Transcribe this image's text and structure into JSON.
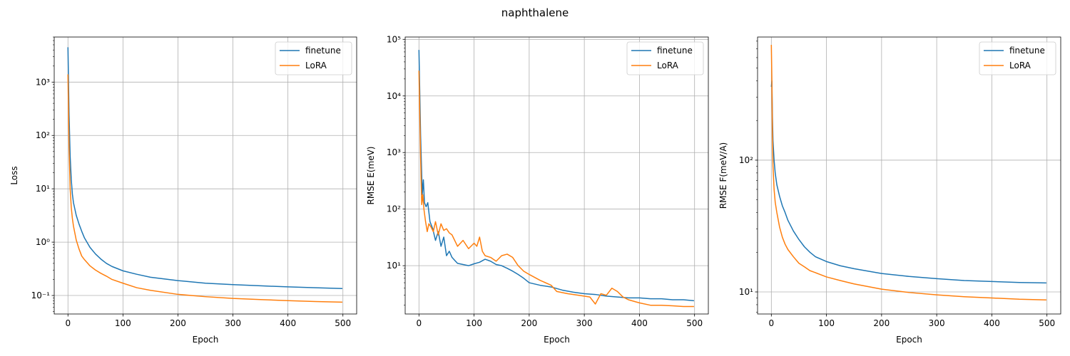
{
  "figure": {
    "suptitle": "naphthalene"
  },
  "colors": {
    "finetune": "#1f77b4",
    "LoRA": "#ff7f0e",
    "grid": "#b0b0b0"
  },
  "chart_data": [
    {
      "type": "line",
      "title": "",
      "xlabel": "Epoch",
      "ylabel": "Loss",
      "yscale": "log",
      "xlim": [
        -25,
        525
      ],
      "ylim": [
        0.045,
        7000
      ],
      "xticks": [
        0,
        100,
        200,
        300,
        400,
        500
      ],
      "xtick_labels": [
        "0",
        "100",
        "200",
        "300",
        "400",
        "500"
      ],
      "yticks": [
        0.1,
        1,
        10,
        100,
        1000
      ],
      "ytick_labels": [
        "10⁻¹",
        "10⁰",
        "10¹",
        "10²",
        "10³"
      ],
      "grid": true,
      "legend": "top-right",
      "series": [
        {
          "name": "finetune",
          "x": [
            0,
            2,
            4,
            6,
            8,
            10,
            15,
            20,
            25,
            30,
            40,
            50,
            60,
            70,
            80,
            100,
            125,
            150,
            200,
            250,
            300,
            350,
            400,
            450,
            499
          ],
          "y": [
            4500,
            250,
            40,
            15,
            8,
            5.5,
            3.2,
            2.2,
            1.6,
            1.2,
            0.8,
            0.6,
            0.48,
            0.4,
            0.35,
            0.29,
            0.25,
            0.22,
            0.19,
            0.17,
            0.16,
            0.152,
            0.145,
            0.14,
            0.135
          ]
        },
        {
          "name": "LoRA",
          "x": [
            0,
            2,
            4,
            6,
            8,
            10,
            15,
            20,
            25,
            30,
            40,
            50,
            60,
            70,
            80,
            100,
            125,
            150,
            200,
            250,
            300,
            350,
            400,
            450,
            499
          ],
          "y": [
            1400,
            60,
            10,
            4.5,
            2.8,
            2.0,
            1.1,
            0.75,
            0.55,
            0.47,
            0.36,
            0.3,
            0.26,
            0.23,
            0.2,
            0.17,
            0.14,
            0.125,
            0.105,
            0.095,
            0.088,
            0.084,
            0.08,
            0.077,
            0.075
          ]
        }
      ]
    },
    {
      "type": "line",
      "title": "",
      "xlabel": "Epoch",
      "ylabel": "RMSE E(meV)",
      "yscale": "log",
      "xlim": [
        -25,
        525
      ],
      "ylim": [
        1.4,
        110000
      ],
      "xticks": [
        0,
        100,
        200,
        300,
        400,
        500
      ],
      "xtick_labels": [
        "0",
        "100",
        "200",
        "300",
        "400",
        "500"
      ],
      "yticks": [
        10,
        100,
        1000,
        10000,
        100000
      ],
      "ytick_labels": [
        "10¹",
        "10²",
        "10³",
        "10⁴",
        "10⁵"
      ],
      "grid": true,
      "legend": "top-right",
      "series": [
        {
          "name": "finetune",
          "x": [
            0,
            3,
            6,
            8,
            10,
            13,
            16,
            20,
            25,
            30,
            35,
            40,
            45,
            50,
            55,
            60,
            70,
            80,
            90,
            100,
            110,
            120,
            130,
            140,
            150,
            160,
            170,
            180,
            190,
            200,
            220,
            240,
            260,
            280,
            300,
            320,
            340,
            360,
            380,
            400,
            420,
            440,
            460,
            480,
            499
          ],
          "y": [
            65000,
            2000,
            180,
            330,
            130,
            110,
            130,
            60,
            45,
            28,
            40,
            22,
            32,
            15,
            18,
            14,
            11,
            10.5,
            10,
            10.8,
            11.5,
            13,
            12,
            10.5,
            10,
            9,
            8,
            7,
            6,
            5,
            4.5,
            4.2,
            3.7,
            3.4,
            3.2,
            3.1,
            2.9,
            2.8,
            2.7,
            2.7,
            2.6,
            2.6,
            2.5,
            2.5,
            2.4
          ]
        },
        {
          "name": "LoRA",
          "x": [
            0,
            3,
            5,
            7,
            9,
            12,
            15,
            18,
            22,
            26,
            30,
            35,
            40,
            45,
            50,
            55,
            60,
            70,
            80,
            90,
            100,
            105,
            110,
            115,
            120,
            130,
            140,
            150,
            160,
            170,
            180,
            190,
            200,
            220,
            240,
            250,
            270,
            290,
            310,
            320,
            330,
            340,
            350,
            360,
            370,
            380,
            400,
            420,
            440,
            460,
            480,
            499
          ],
          "y": [
            28000,
            800,
            120,
            180,
            100,
            60,
            40,
            55,
            48,
            40,
            60,
            35,
            55,
            42,
            45,
            38,
            35,
            22,
            28,
            20,
            25,
            22,
            32,
            18,
            15,
            14,
            12,
            15,
            16,
            14,
            10,
            8,
            7,
            5.5,
            4.5,
            3.5,
            3.2,
            3.0,
            2.8,
            2.1,
            3.2,
            3.0,
            4.0,
            3.5,
            2.8,
            2.5,
            2.2,
            2.0,
            2.0,
            1.95,
            1.9,
            1.9
          ]
        }
      ]
    },
    {
      "type": "line",
      "title": "",
      "xlabel": "Epoch",
      "ylabel": "RMSE F(meV/A)",
      "yscale": "log",
      "xlim": [
        -25,
        525
      ],
      "ylim": [
        6.8,
        860
      ],
      "xticks": [
        0,
        100,
        200,
        300,
        400,
        500
      ],
      "xtick_labels": [
        "0",
        "100",
        "200",
        "300",
        "400",
        "500"
      ],
      "yticks": [
        10,
        100
      ],
      "ytick_labels": [
        "10¹",
        "10²"
      ],
      "grid": true,
      "legend": "top-right",
      "series": [
        {
          "name": "finetune",
          "x": [
            0,
            1,
            2,
            3,
            5,
            7,
            10,
            15,
            20,
            25,
            30,
            40,
            50,
            60,
            70,
            80,
            100,
            125,
            150,
            200,
            250,
            300,
            350,
            400,
            450,
            499
          ],
          "y": [
            360,
            400,
            210,
            140,
            100,
            80,
            65,
            53,
            45,
            40,
            35,
            29,
            25,
            22,
            20,
            18.5,
            17,
            15.8,
            15,
            13.8,
            13.1,
            12.6,
            12.2,
            12.0,
            11.8,
            11.7
          ]
        },
        {
          "name": "LoRA",
          "x": [
            0,
            1,
            2,
            3,
            5,
            7,
            10,
            15,
            20,
            25,
            30,
            40,
            50,
            60,
            70,
            80,
            100,
            125,
            150,
            200,
            250,
            300,
            350,
            400,
            450,
            499
          ],
          "y": [
            750,
            400,
            150,
            90,
            60,
            48,
            40,
            31,
            26,
            23,
            21,
            18.5,
            16.5,
            15.5,
            14.5,
            14,
            13,
            12.2,
            11.5,
            10.5,
            9.9,
            9.5,
            9.2,
            9.0,
            8.8,
            8.7
          ]
        }
      ]
    }
  ]
}
